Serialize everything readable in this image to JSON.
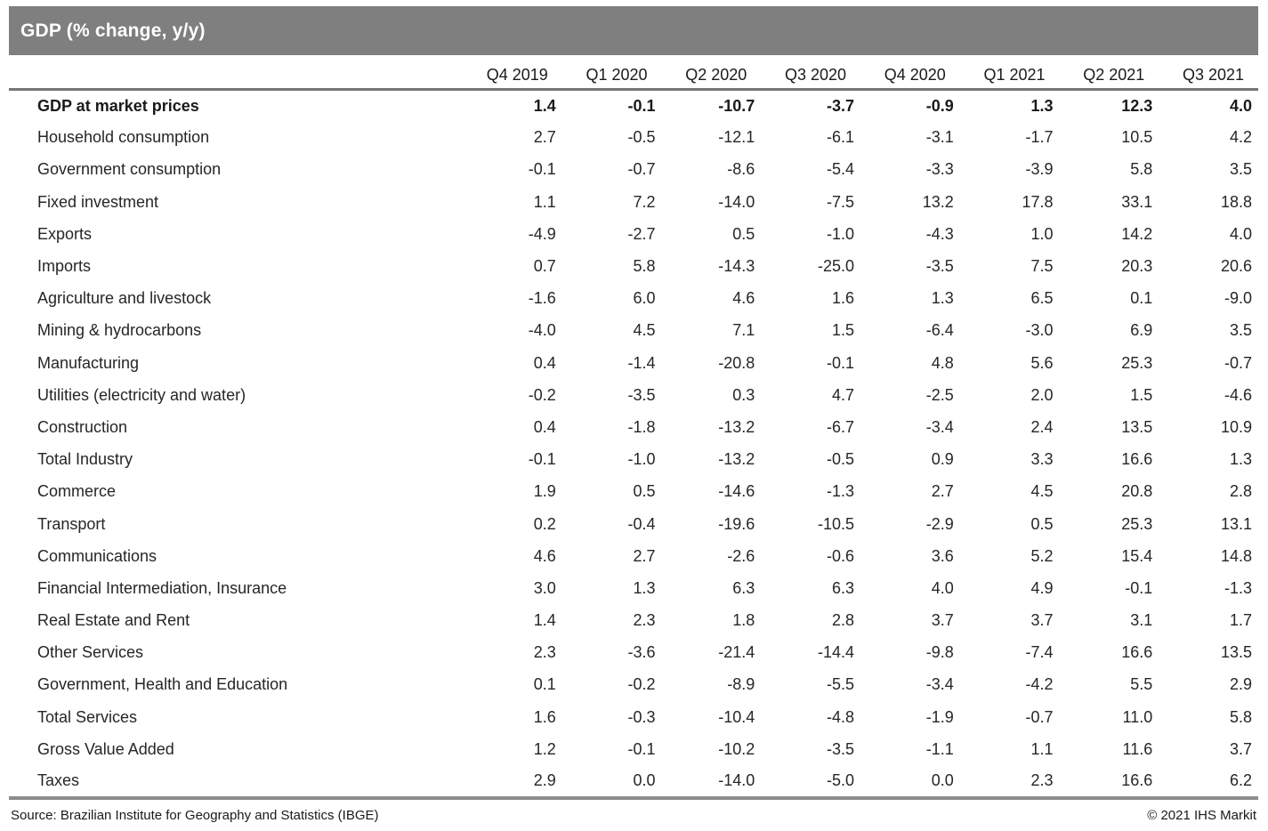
{
  "header": {
    "title": "GDP (% change, y/y)"
  },
  "chart_data": {
    "type": "table",
    "title": "GDP (% change, y/y)",
    "categories": [
      "Q4 2019",
      "Q1 2020",
      "Q2 2020",
      "Q3 2020",
      "Q4 2020",
      "Q1 2021",
      "Q2 2021",
      "Q3 2021"
    ],
    "series": [
      {
        "name": "GDP at market prices",
        "bold": true,
        "values": [
          1.4,
          -0.1,
          -10.7,
          -3.7,
          -0.9,
          1.3,
          12.3,
          4.0
        ]
      },
      {
        "name": "Household consumption",
        "bold": false,
        "values": [
          2.7,
          -0.5,
          -12.1,
          -6.1,
          -3.1,
          -1.7,
          10.5,
          4.2
        ]
      },
      {
        "name": "Government consumption",
        "bold": false,
        "values": [
          -0.1,
          -0.7,
          -8.6,
          -5.4,
          -3.3,
          -3.9,
          5.8,
          3.5
        ]
      },
      {
        "name": "Fixed investment",
        "bold": false,
        "values": [
          1.1,
          7.2,
          -14.0,
          -7.5,
          13.2,
          17.8,
          33.1,
          18.8
        ]
      },
      {
        "name": "Exports",
        "bold": false,
        "values": [
          -4.9,
          -2.7,
          0.5,
          -1.0,
          -4.3,
          1.0,
          14.2,
          4.0
        ]
      },
      {
        "name": "Imports",
        "bold": false,
        "values": [
          0.7,
          5.8,
          -14.3,
          -25.0,
          -3.5,
          7.5,
          20.3,
          20.6
        ]
      },
      {
        "name": "Agriculture and livestock",
        "bold": false,
        "values": [
          -1.6,
          6.0,
          4.6,
          1.6,
          1.3,
          6.5,
          0.1,
          -9.0
        ]
      },
      {
        "name": "Mining & hydrocarbons",
        "bold": false,
        "values": [
          -4.0,
          4.5,
          7.1,
          1.5,
          -6.4,
          -3.0,
          6.9,
          3.5
        ]
      },
      {
        "name": "Manufacturing",
        "bold": false,
        "values": [
          0.4,
          -1.4,
          -20.8,
          -0.1,
          4.8,
          5.6,
          25.3,
          -0.7
        ]
      },
      {
        "name": "Utilities (electricity and water)",
        "bold": false,
        "values": [
          -0.2,
          -3.5,
          0.3,
          4.7,
          -2.5,
          2.0,
          1.5,
          -4.6
        ]
      },
      {
        "name": "Construction",
        "bold": false,
        "values": [
          0.4,
          -1.8,
          -13.2,
          -6.7,
          -3.4,
          2.4,
          13.5,
          10.9
        ]
      },
      {
        "name": "Total Industry",
        "bold": false,
        "values": [
          -0.1,
          -1.0,
          -13.2,
          -0.5,
          0.9,
          3.3,
          16.6,
          1.3
        ]
      },
      {
        "name": "Commerce",
        "bold": false,
        "values": [
          1.9,
          0.5,
          -14.6,
          -1.3,
          2.7,
          4.5,
          20.8,
          2.8
        ]
      },
      {
        "name": "Transport",
        "bold": false,
        "values": [
          0.2,
          -0.4,
          -19.6,
          -10.5,
          -2.9,
          0.5,
          25.3,
          13.1
        ]
      },
      {
        "name": "Communications",
        "bold": false,
        "values": [
          4.6,
          2.7,
          -2.6,
          -0.6,
          3.6,
          5.2,
          15.4,
          14.8
        ]
      },
      {
        "name": "Financial Intermediation, Insurance",
        "bold": false,
        "values": [
          3.0,
          1.3,
          6.3,
          6.3,
          4.0,
          4.9,
          -0.1,
          -1.3
        ]
      },
      {
        "name": "Real Estate and Rent",
        "bold": false,
        "values": [
          1.4,
          2.3,
          1.8,
          2.8,
          3.7,
          3.7,
          3.1,
          1.7
        ]
      },
      {
        "name": "Other Services",
        "bold": false,
        "values": [
          2.3,
          -3.6,
          -21.4,
          -14.4,
          -9.8,
          -7.4,
          16.6,
          13.5
        ]
      },
      {
        "name": "Government, Health and Education",
        "bold": false,
        "values": [
          0.1,
          -0.2,
          -8.9,
          -5.5,
          -3.4,
          -4.2,
          5.5,
          2.9
        ]
      },
      {
        "name": "Total Services",
        "bold": false,
        "values": [
          1.6,
          -0.3,
          -10.4,
          -4.8,
          -1.9,
          -0.7,
          11.0,
          5.8
        ]
      },
      {
        "name": "Gross Value Added",
        "bold": false,
        "values": [
          1.2,
          -0.1,
          -10.2,
          -3.5,
          -1.1,
          1.1,
          11.6,
          3.7
        ]
      },
      {
        "name": "Taxes",
        "bold": false,
        "values": [
          2.9,
          0.0,
          -14.0,
          -5.0,
          0.0,
          2.3,
          16.6,
          6.2
        ]
      }
    ],
    "value_format": "one_decimal",
    "layout": {
      "grid": false,
      "header_rule_color": "#757575",
      "bottom_rule_color": "#8c8c8c"
    }
  },
  "colors": {
    "title_bar": "#7f7f7f",
    "title_text": "#ffffff",
    "body_text": "#262626"
  },
  "footer": {
    "source": "Source: Brazilian Institute for Geography and Statistics (IBGE)",
    "copyright": "© 2021 IHS Markit"
  }
}
